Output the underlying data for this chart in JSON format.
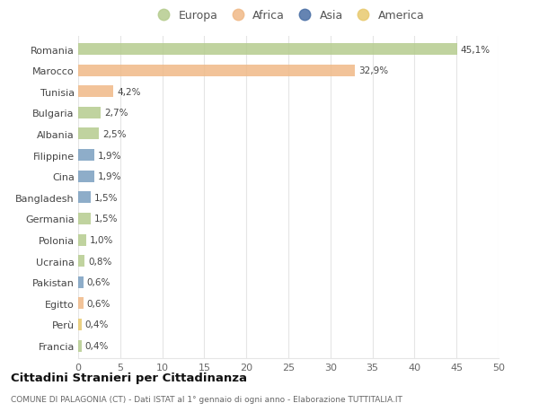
{
  "countries": [
    "Romania",
    "Marocco",
    "Tunisia",
    "Bulgaria",
    "Albania",
    "Filippine",
    "Cina",
    "Bangladesh",
    "Germania",
    "Polonia",
    "Ucraina",
    "Pakistan",
    "Egitto",
    "Perù",
    "Francia"
  ],
  "values": [
    45.1,
    32.9,
    4.2,
    2.7,
    2.5,
    1.9,
    1.9,
    1.5,
    1.5,
    1.0,
    0.8,
    0.6,
    0.6,
    0.4,
    0.4
  ],
  "labels": [
    "45,1%",
    "32,9%",
    "4,2%",
    "2,7%",
    "2,5%",
    "1,9%",
    "1,9%",
    "1,5%",
    "1,5%",
    "1,0%",
    "0,8%",
    "0,6%",
    "0,6%",
    "0,4%",
    "0,4%"
  ],
  "colors": [
    "#b5cc8e",
    "#f0b987",
    "#f0b987",
    "#b5cc8e",
    "#b5cc8e",
    "#7a9fc0",
    "#7a9fc0",
    "#7a9fc0",
    "#b5cc8e",
    "#b5cc8e",
    "#b5cc8e",
    "#7a9fc0",
    "#f0b987",
    "#e8c96e",
    "#b5cc8e"
  ],
  "legend_labels": [
    "Europa",
    "Africa",
    "Asia",
    "America"
  ],
  "legend_colors": [
    "#b5cc8e",
    "#f0b987",
    "#4a6fa5",
    "#e8c96e"
  ],
  "title": "Cittadini Stranieri per Cittadinanza",
  "subtitle": "COMUNE DI PALAGONIA (CT) - Dati ISTAT al 1° gennaio di ogni anno - Elaborazione TUTTITALIA.IT",
  "xlim": [
    0,
    50
  ],
  "xticks": [
    0,
    5,
    10,
    15,
    20,
    25,
    30,
    35,
    40,
    45,
    50
  ],
  "bg_color": "#ffffff",
  "grid_color": "#e5e5e5",
  "bar_height": 0.55
}
